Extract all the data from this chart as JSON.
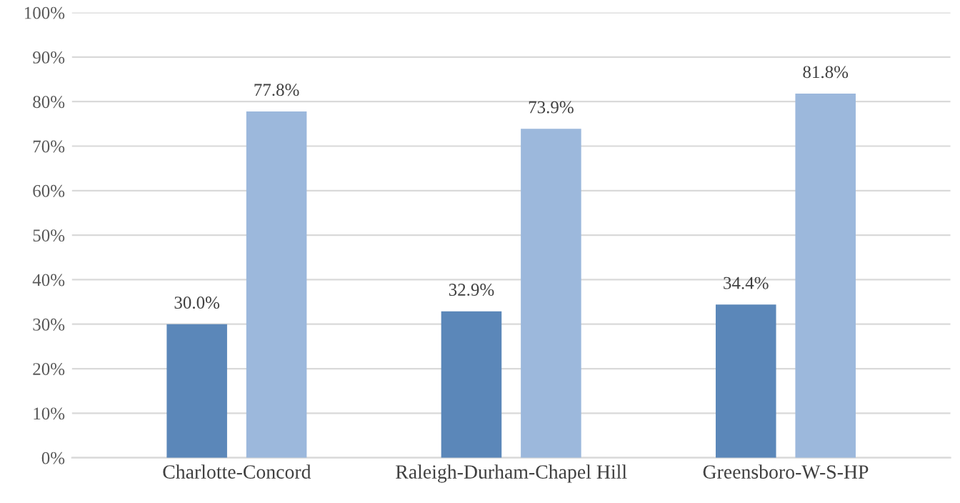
{
  "chart_data": {
    "type": "bar",
    "categories": [
      "Charlotte-Concord",
      "Raleigh-Durham-Chapel Hill",
      "Greensboro-W-S-HP"
    ],
    "series": [
      {
        "color": "#5b87b9",
        "values": [
          30.0,
          32.9,
          34.4
        ],
        "value_labels": [
          "30.0%",
          "32.9%",
          "34.4%"
        ]
      },
      {
        "color": "#9cb8dc",
        "values": [
          77.8,
          73.9,
          81.8
        ],
        "value_labels": [
          "77.8%",
          "73.9%",
          "81.8%"
        ]
      }
    ],
    "ylim": [
      0,
      100
    ],
    "yticks": [
      {
        "value": 0,
        "label": "0%"
      },
      {
        "value": 10,
        "label": "10%"
      },
      {
        "value": 20,
        "label": "20%"
      },
      {
        "value": 30,
        "label": "30%"
      },
      {
        "value": 40,
        "label": "40%"
      },
      {
        "value": 50,
        "label": "50%"
      },
      {
        "value": 60,
        "label": "60%"
      },
      {
        "value": 70,
        "label": "70%"
      },
      {
        "value": 80,
        "label": "80%"
      },
      {
        "value": 90,
        "label": "90%"
      },
      {
        "value": 100,
        "label": "100%"
      }
    ],
    "grid": "y",
    "legend": false
  }
}
